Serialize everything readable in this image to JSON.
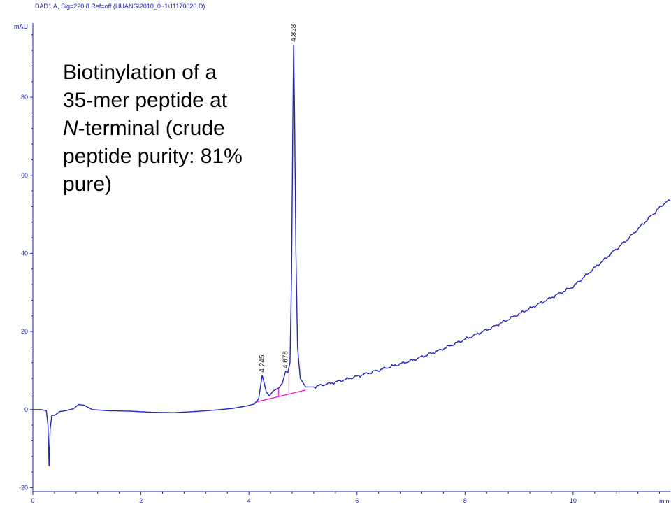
{
  "header": "DAD1 A, Sig=220,8 Ref=off (HUANG\\2010_0~1\\11170020.D)",
  "y_unit": "mAU",
  "x_unit": "min",
  "annotation": {
    "line1": "Biotinylation of a",
    "line2": "35-mer peptide at",
    "line3_italic": "N",
    "line3_rest": "-terminal (crude",
    "line4": "peptide purity: 81%",
    "line5": "pure)"
  },
  "colors": {
    "trace": "#2424cc",
    "axis": "#1a1acc",
    "baseline": "#ff00cc"
  },
  "chart_data": {
    "type": "line",
    "title": "",
    "xlabel": "min",
    "ylabel": "mAU",
    "xlim": [
      0,
      11.8
    ],
    "ylim": [
      -21,
      99
    ],
    "x_ticks": [
      0,
      2,
      4,
      6,
      8,
      10
    ],
    "y_ticks": [
      -20,
      0,
      20,
      40,
      60,
      80
    ],
    "grid": false,
    "series": [
      {
        "values_xy": [
          [
            0,
            0
          ],
          [
            0.15,
            0
          ],
          [
            0.25,
            -0.3
          ],
          [
            0.28,
            -4
          ],
          [
            0.3,
            -14.5
          ],
          [
            0.32,
            -5
          ],
          [
            0.35,
            -1.5
          ],
          [
            0.4,
            -1.5
          ],
          [
            0.5,
            -0.5
          ],
          [
            0.6,
            -0.3
          ],
          [
            0.75,
            0.2
          ],
          [
            0.85,
            1.3
          ],
          [
            0.95,
            1.1
          ],
          [
            1.1,
            0
          ],
          [
            1.4,
            -0.3
          ],
          [
            1.8,
            -0.4
          ],
          [
            2.2,
            -0.7
          ],
          [
            2.6,
            -0.8
          ],
          [
            3.0,
            -0.5
          ],
          [
            3.4,
            -0.1
          ],
          [
            3.7,
            0.3
          ],
          [
            3.95,
            0.9
          ],
          [
            4.1,
            1.4
          ],
          [
            4.18,
            2.8
          ],
          [
            4.22,
            6.5
          ],
          [
            4.245,
            8.8
          ],
          [
            4.27,
            7.5
          ],
          [
            4.32,
            4.5
          ],
          [
            4.38,
            3.5
          ],
          [
            4.45,
            4.8
          ],
          [
            4.55,
            5.5
          ],
          [
            4.62,
            6.8
          ],
          [
            4.678,
            9.8
          ],
          [
            4.72,
            9.5
          ],
          [
            4.76,
            12
          ],
          [
            4.79,
            35
          ],
          [
            4.81,
            70
          ],
          [
            4.828,
            93.5
          ],
          [
            4.845,
            75
          ],
          [
            4.87,
            40
          ],
          [
            4.9,
            16
          ],
          [
            4.95,
            8
          ],
          [
            5.05,
            5.8
          ],
          [
            5.2,
            5.8
          ],
          [
            5.6,
            7
          ],
          [
            6.0,
            8.5
          ],
          [
            6.5,
            10.5
          ],
          [
            7.0,
            12.5
          ],
          [
            7.5,
            15
          ],
          [
            8.0,
            18
          ],
          [
            8.5,
            21
          ],
          [
            9.0,
            24.5
          ],
          [
            9.5,
            28
          ],
          [
            10.0,
            31.5
          ],
          [
            10.5,
            37.5
          ],
          [
            11.0,
            43.5
          ],
          [
            11.4,
            49
          ],
          [
            11.7,
            53
          ],
          [
            11.8,
            53.5
          ]
        ]
      }
    ],
    "peaks": [
      {
        "rt": 4.245,
        "label": "4.245",
        "height": 8.8
      },
      {
        "rt": 4.678,
        "label": "4.678",
        "height": 9.8
      },
      {
        "rt": 4.828,
        "label": "4.828",
        "height": 93.5
      }
    ],
    "integration_baseline": [
      [
        4.12,
        1.9
      ],
      [
        5.05,
        5.0
      ]
    ]
  }
}
